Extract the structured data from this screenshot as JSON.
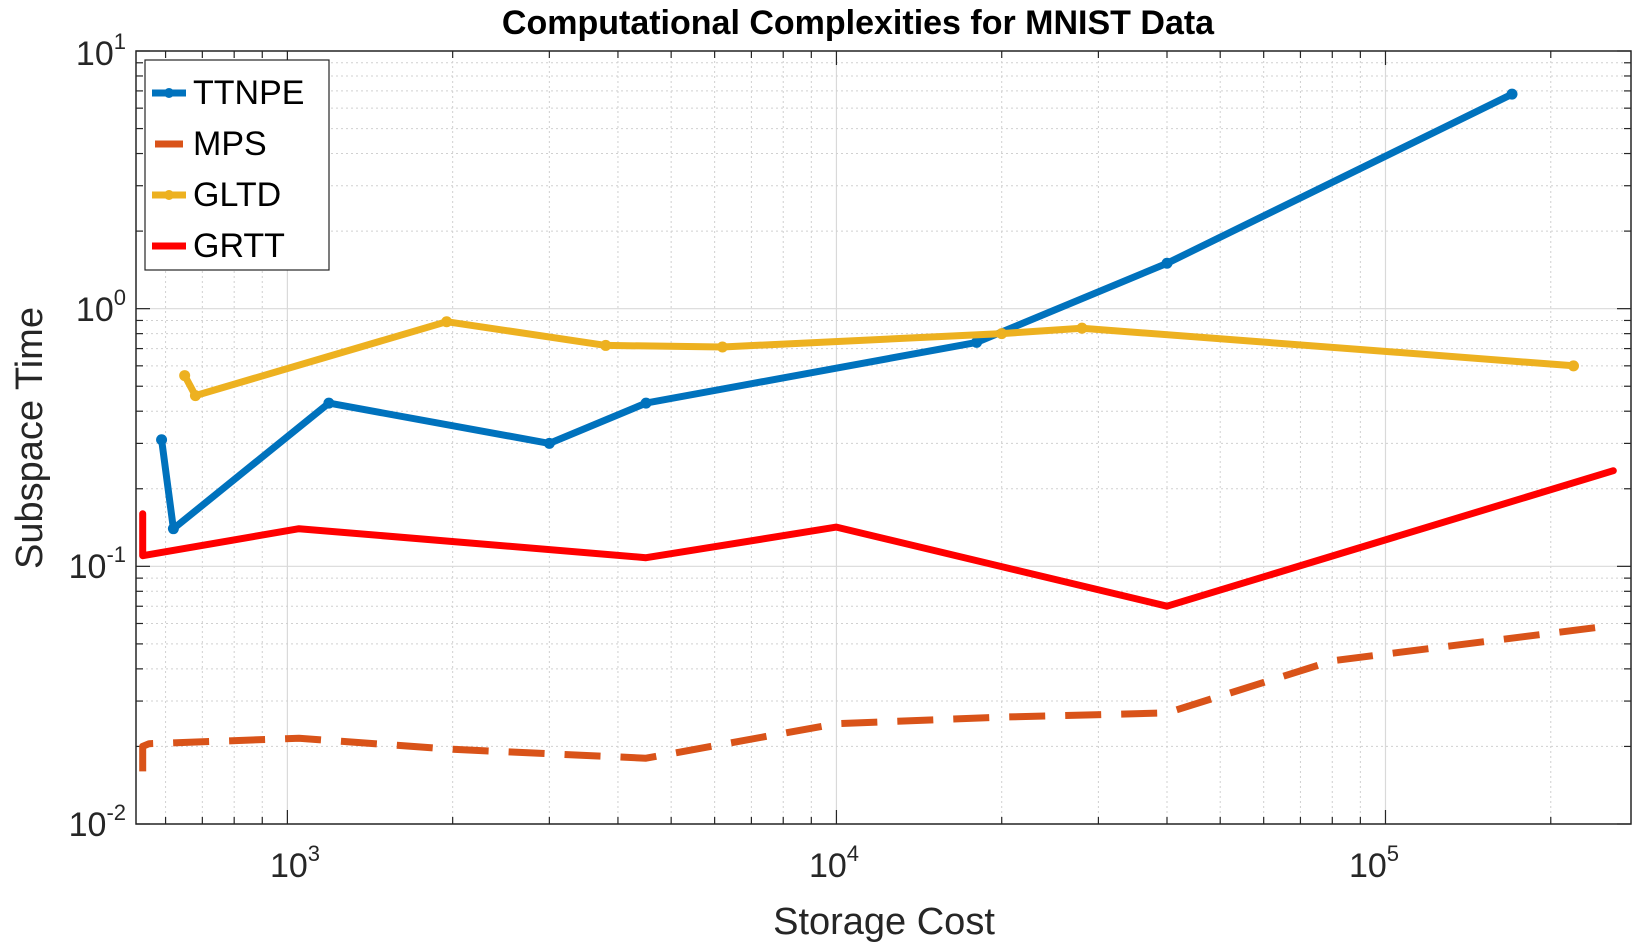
{
  "chart_data": {
    "type": "line",
    "title": "Computational Complexities for MNIST Data",
    "xlabel": "Storage Cost",
    "ylabel": "Subspace Time",
    "xscale": "log",
    "yscale": "log",
    "xlim": [
      530,
      280000
    ],
    "ylim": [
      0.01,
      10
    ],
    "grid": "on (major and minor)",
    "legend_location": "top-left",
    "xticks": [
      {
        "base": "10",
        "exp": "3",
        "value": 1000
      },
      {
        "base": "10",
        "exp": "4",
        "value": 10000
      },
      {
        "base": "10",
        "exp": "5",
        "value": 100000
      }
    ],
    "yticks": [
      {
        "base": "10",
        "exp": "-2",
        "value": 0.01
      },
      {
        "base": "10",
        "exp": "-1",
        "value": 0.1
      },
      {
        "base": "10",
        "exp": "0",
        "value": 1
      },
      {
        "base": "10",
        "exp": "1",
        "value": 10
      }
    ],
    "series": [
      {
        "name": "TTNPE",
        "color": "#0072BD",
        "style": "solid",
        "markers": true,
        "x": [
          590,
          620,
          1190,
          3000,
          4500,
          18000,
          40000,
          170000
        ],
        "y": [
          0.31,
          0.14,
          0.43,
          0.3,
          0.43,
          0.74,
          1.5,
          6.8
        ]
      },
      {
        "name": "MPS",
        "color": "#D95319",
        "style": "dashed",
        "markers": false,
        "x": [
          545,
          545,
          560,
          1050,
          2000,
          4500,
          10000,
          20000,
          40000,
          80000,
          260000
        ],
        "y": [
          0.016,
          0.02,
          0.0205,
          0.0215,
          0.0195,
          0.018,
          0.0245,
          0.026,
          0.027,
          0.043,
          0.059
        ]
      },
      {
        "name": "GLTD",
        "color": "#EDB120",
        "style": "solid",
        "markers": true,
        "x": [
          650,
          680,
          1950,
          3800,
          6200,
          20000,
          28000,
          220000
        ],
        "y": [
          0.55,
          0.46,
          0.89,
          0.72,
          0.71,
          0.8,
          0.84,
          0.6
        ]
      },
      {
        "name": "GRTT",
        "color": "#FF0000",
        "style": "solid",
        "markers": false,
        "x": [
          545,
          545,
          1050,
          4500,
          10000,
          40000,
          260000
        ],
        "y": [
          0.16,
          0.11,
          0.14,
          0.108,
          0.142,
          0.07,
          0.235
        ]
      }
    ]
  }
}
